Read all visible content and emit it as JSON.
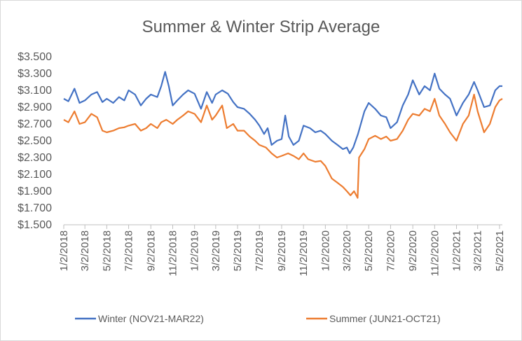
{
  "chart_data": {
    "type": "line",
    "title": "Summer & Winter Strip Average",
    "ylim": [
      1.5,
      3.5
    ],
    "yticks": [
      "$1.500",
      "$1.700",
      "$1.900",
      "$2.100",
      "$2.300",
      "$2.500",
      "$2.700",
      "$2.900",
      "$3.100",
      "$3.300",
      "$3.500"
    ],
    "xticks": [
      "1/2/2018",
      "3/2/2018",
      "5/2/2018",
      "7/2/2018",
      "9/2/2018",
      "11/2/2018",
      "1/2/2019",
      "3/2/2019",
      "5/2/2019",
      "7/2/2019",
      "9/2/2019",
      "11/2/2019",
      "1/2/2020",
      "3/2/2020",
      "5/2/2020",
      "7/2/2020",
      "9/2/2020",
      "11/2/2020",
      "1/2/2021",
      "3/2/2021",
      "5/2/2021"
    ],
    "xlim": [
      "2018-01-02",
      "2021-05-10"
    ],
    "grid": false,
    "legend": "bottom",
    "series": [
      {
        "name": "Winter (NOV21-MAR22)",
        "color": "#4472C4",
        "points": [
          [
            "2018-01-02",
            3.0
          ],
          [
            "2018-01-15",
            2.97
          ],
          [
            "2018-02-01",
            3.12
          ],
          [
            "2018-02-15",
            2.95
          ],
          [
            "2018-03-02",
            2.98
          ],
          [
            "2018-03-20",
            3.05
          ],
          [
            "2018-04-05",
            3.08
          ],
          [
            "2018-04-20",
            2.96
          ],
          [
            "2018-05-02",
            3.0
          ],
          [
            "2018-05-20",
            2.95
          ],
          [
            "2018-06-05",
            3.02
          ],
          [
            "2018-06-20",
            2.98
          ],
          [
            "2018-07-02",
            3.1
          ],
          [
            "2018-07-20",
            3.05
          ],
          [
            "2018-08-05",
            2.92
          ],
          [
            "2018-08-20",
            3.0
          ],
          [
            "2018-09-02",
            3.05
          ],
          [
            "2018-09-20",
            3.02
          ],
          [
            "2018-10-01",
            3.15
          ],
          [
            "2018-10-12",
            3.32
          ],
          [
            "2018-10-22",
            3.15
          ],
          [
            "2018-11-02",
            2.92
          ],
          [
            "2018-11-15",
            2.98
          ],
          [
            "2018-12-01",
            3.05
          ],
          [
            "2018-12-15",
            3.1
          ],
          [
            "2019-01-02",
            3.06
          ],
          [
            "2019-01-20",
            2.88
          ],
          [
            "2019-02-05",
            3.08
          ],
          [
            "2019-02-20",
            2.95
          ],
          [
            "2019-03-02",
            3.05
          ],
          [
            "2019-03-20",
            3.1
          ],
          [
            "2019-04-05",
            3.06
          ],
          [
            "2019-04-20",
            2.96
          ],
          [
            "2019-05-02",
            2.9
          ],
          [
            "2019-05-20",
            2.88
          ],
          [
            "2019-06-05",
            2.82
          ],
          [
            "2019-06-20",
            2.75
          ],
          [
            "2019-07-02",
            2.68
          ],
          [
            "2019-07-15",
            2.58
          ],
          [
            "2019-07-25",
            2.65
          ],
          [
            "2019-08-05",
            2.45
          ],
          [
            "2019-08-20",
            2.5
          ],
          [
            "2019-09-02",
            2.52
          ],
          [
            "2019-09-12",
            2.8
          ],
          [
            "2019-09-22",
            2.55
          ],
          [
            "2019-10-05",
            2.45
          ],
          [
            "2019-10-20",
            2.5
          ],
          [
            "2019-11-02",
            2.68
          ],
          [
            "2019-11-20",
            2.65
          ],
          [
            "2019-12-05",
            2.6
          ],
          [
            "2019-12-20",
            2.62
          ],
          [
            "2020-01-02",
            2.58
          ],
          [
            "2020-01-20",
            2.5
          ],
          [
            "2020-02-05",
            2.45
          ],
          [
            "2020-02-20",
            2.4
          ],
          [
            "2020-03-02",
            2.42
          ],
          [
            "2020-03-10",
            2.35
          ],
          [
            "2020-03-20",
            2.42
          ],
          [
            "2020-04-02",
            2.58
          ],
          [
            "2020-04-20",
            2.85
          ],
          [
            "2020-05-02",
            2.95
          ],
          [
            "2020-05-20",
            2.88
          ],
          [
            "2020-06-05",
            2.8
          ],
          [
            "2020-06-20",
            2.78
          ],
          [
            "2020-07-02",
            2.65
          ],
          [
            "2020-07-20",
            2.72
          ],
          [
            "2020-08-05",
            2.92
          ],
          [
            "2020-08-20",
            3.05
          ],
          [
            "2020-09-02",
            3.22
          ],
          [
            "2020-09-20",
            3.05
          ],
          [
            "2020-10-05",
            3.15
          ],
          [
            "2020-10-20",
            3.1
          ],
          [
            "2020-11-02",
            3.3
          ],
          [
            "2020-11-15",
            3.12
          ],
          [
            "2020-12-01",
            3.05
          ],
          [
            "2020-12-15",
            3.0
          ],
          [
            "2021-01-02",
            2.8
          ],
          [
            "2021-01-20",
            2.95
          ],
          [
            "2021-02-05",
            3.05
          ],
          [
            "2021-02-20",
            3.2
          ],
          [
            "2021-03-02",
            3.1
          ],
          [
            "2021-03-20",
            2.9
          ],
          [
            "2021-04-05",
            2.92
          ],
          [
            "2021-04-20",
            3.1
          ],
          [
            "2021-05-02",
            3.15
          ],
          [
            "2021-05-10",
            3.15
          ]
        ]
      },
      {
        "name": "Summer  (JUN21-OCT21)",
        "color": "#ED7D31",
        "points": [
          [
            "2018-01-02",
            2.75
          ],
          [
            "2018-01-15",
            2.72
          ],
          [
            "2018-02-01",
            2.85
          ],
          [
            "2018-02-15",
            2.7
          ],
          [
            "2018-03-02",
            2.72
          ],
          [
            "2018-03-20",
            2.82
          ],
          [
            "2018-04-05",
            2.78
          ],
          [
            "2018-04-20",
            2.62
          ],
          [
            "2018-05-02",
            2.6
          ],
          [
            "2018-05-20",
            2.62
          ],
          [
            "2018-06-05",
            2.65
          ],
          [
            "2018-06-20",
            2.66
          ],
          [
            "2018-07-02",
            2.68
          ],
          [
            "2018-07-20",
            2.7
          ],
          [
            "2018-08-05",
            2.62
          ],
          [
            "2018-08-20",
            2.65
          ],
          [
            "2018-09-02",
            2.7
          ],
          [
            "2018-09-20",
            2.65
          ],
          [
            "2018-10-01",
            2.72
          ],
          [
            "2018-10-15",
            2.75
          ],
          [
            "2018-11-02",
            2.7
          ],
          [
            "2018-11-15",
            2.75
          ],
          [
            "2018-12-01",
            2.8
          ],
          [
            "2018-12-15",
            2.85
          ],
          [
            "2019-01-02",
            2.82
          ],
          [
            "2019-01-20",
            2.72
          ],
          [
            "2019-02-05",
            2.92
          ],
          [
            "2019-02-20",
            2.75
          ],
          [
            "2019-03-02",
            2.8
          ],
          [
            "2019-03-20",
            2.92
          ],
          [
            "2019-04-02",
            2.65
          ],
          [
            "2019-04-20",
            2.7
          ],
          [
            "2019-05-02",
            2.62
          ],
          [
            "2019-05-20",
            2.62
          ],
          [
            "2019-06-05",
            2.55
          ],
          [
            "2019-06-20",
            2.5
          ],
          [
            "2019-07-02",
            2.45
          ],
          [
            "2019-07-20",
            2.42
          ],
          [
            "2019-08-05",
            2.35
          ],
          [
            "2019-08-20",
            2.3
          ],
          [
            "2019-09-02",
            2.32
          ],
          [
            "2019-09-20",
            2.35
          ],
          [
            "2019-10-05",
            2.32
          ],
          [
            "2019-10-20",
            2.28
          ],
          [
            "2019-11-02",
            2.35
          ],
          [
            "2019-11-15",
            2.28
          ],
          [
            "2019-12-05",
            2.25
          ],
          [
            "2019-12-20",
            2.26
          ],
          [
            "2020-01-02",
            2.2
          ],
          [
            "2020-01-20",
            2.05
          ],
          [
            "2020-02-05",
            2.0
          ],
          [
            "2020-02-20",
            1.95
          ],
          [
            "2020-03-02",
            1.9
          ],
          [
            "2020-03-12",
            1.85
          ],
          [
            "2020-03-22",
            1.9
          ],
          [
            "2020-04-01",
            1.82
          ],
          [
            "2020-04-05",
            2.3
          ],
          [
            "2020-04-20",
            2.4
          ],
          [
            "2020-05-02",
            2.52
          ],
          [
            "2020-05-20",
            2.56
          ],
          [
            "2020-06-05",
            2.52
          ],
          [
            "2020-06-20",
            2.55
          ],
          [
            "2020-07-02",
            2.5
          ],
          [
            "2020-07-20",
            2.52
          ],
          [
            "2020-08-05",
            2.62
          ],
          [
            "2020-08-20",
            2.75
          ],
          [
            "2020-09-02",
            2.82
          ],
          [
            "2020-09-20",
            2.8
          ],
          [
            "2020-10-05",
            2.88
          ],
          [
            "2020-10-20",
            2.85
          ],
          [
            "2020-11-02",
            3.0
          ],
          [
            "2020-11-15",
            2.8
          ],
          [
            "2020-12-01",
            2.7
          ],
          [
            "2020-12-15",
            2.6
          ],
          [
            "2021-01-02",
            2.5
          ],
          [
            "2021-01-20",
            2.7
          ],
          [
            "2021-02-05",
            2.8
          ],
          [
            "2021-02-20",
            3.05
          ],
          [
            "2021-03-02",
            2.85
          ],
          [
            "2021-03-20",
            2.6
          ],
          [
            "2021-04-05",
            2.7
          ],
          [
            "2021-04-20",
            2.9
          ],
          [
            "2021-05-02",
            2.98
          ],
          [
            "2021-05-10",
            3.0
          ]
        ]
      }
    ]
  }
}
